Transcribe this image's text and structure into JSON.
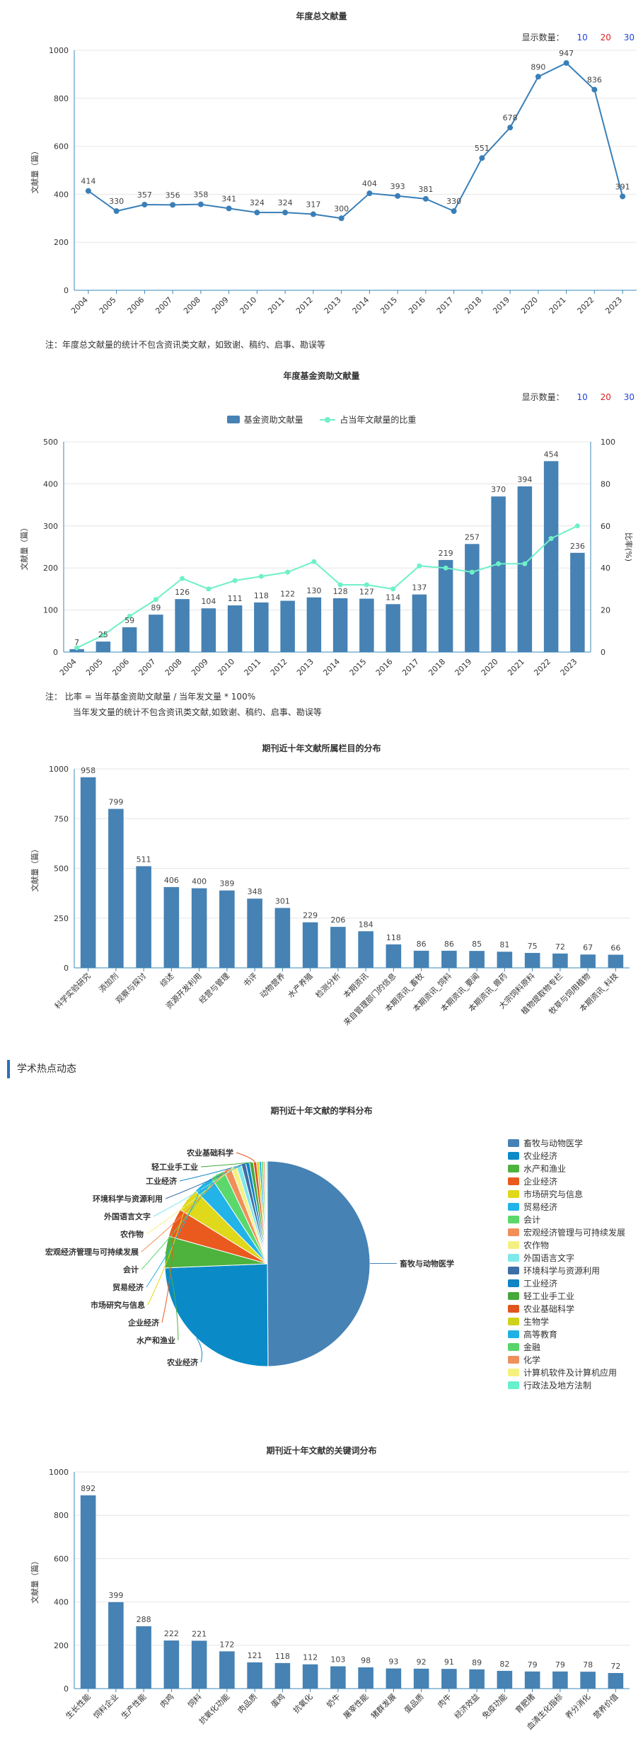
{
  "count_options": {
    "label": "显示数量：",
    "opt10": "10",
    "opt20": "20",
    "opt30": "30"
  },
  "section": {
    "title": "学术热点动态"
  },
  "notes": {
    "total_note": "注：年度总文献量的统计不包含资讯类文献，如致谢、稿约、启事、勘误等",
    "fund_note1": "注：  比率 = 当年基金资助文献量 / 当年发文量 * 100%",
    "fund_note2": "当年发文量的统计不包含资讯类文献,如致谢、稿约、启事、勘误等"
  },
  "chart_data": [
    {
      "id": "total",
      "type": "line",
      "title": "年度总文献量",
      "ylabel": "文献量（篇）",
      "ylim": [
        0,
        1000
      ],
      "yticks": [
        0,
        200,
        400,
        600,
        800,
        1000
      ],
      "categories": [
        "2004",
        "2005",
        "2006",
        "2007",
        "2008",
        "2009",
        "2010",
        "2011",
        "2012",
        "2013",
        "2014",
        "2015",
        "2016",
        "2017",
        "2018",
        "2019",
        "2020",
        "2021",
        "2022",
        "2023"
      ],
      "values": [
        414,
        330,
        357,
        356,
        358,
        341,
        324,
        324,
        317,
        300,
        404,
        393,
        381,
        330,
        551,
        678,
        890,
        947,
        836,
        391
      ],
      "color": "#3a7fb8"
    },
    {
      "id": "fund",
      "type": "bar+line",
      "title": "年度基金资助文献量",
      "ylabel": "文献量（篇）",
      "y2label": "比率(%)",
      "ylim": [
        0,
        500
      ],
      "yticks": [
        0,
        100,
        200,
        300,
        400,
        500
      ],
      "y2lim": [
        0,
        100
      ],
      "y2ticks": [
        0,
        20,
        40,
        60,
        80,
        100
      ],
      "categories": [
        "2004",
        "2005",
        "2006",
        "2007",
        "2008",
        "2009",
        "2010",
        "2011",
        "2012",
        "2013",
        "2014",
        "2015",
        "2016",
        "2017",
        "2018",
        "2019",
        "2020",
        "2021",
        "2022",
        "2023"
      ],
      "series": [
        {
          "name": "基金资助文献量",
          "values": [
            7,
            25,
            59,
            89,
            126,
            104,
            111,
            118,
            122,
            130,
            128,
            127,
            114,
            137,
            219,
            257,
            370,
            394,
            454,
            236
          ],
          "color": "#4682b4"
        },
        {
          "name": "占当年文献量的比重",
          "values": [
            2,
            8,
            17,
            25,
            35,
            30,
            34,
            36,
            38,
            43,
            32,
            32,
            30,
            41,
            40,
            38,
            42,
            42,
            54,
            60
          ],
          "color": "#6ff0c8"
        }
      ]
    },
    {
      "id": "column",
      "type": "bar",
      "title": "期刊近十年文献所属栏目的分布",
      "ylabel": "文献量（篇）",
      "ylim": [
        0,
        1000
      ],
      "yticks": [
        0,
        250,
        500,
        750,
        1000
      ],
      "categories": [
        "科学实验研究",
        "添加剂",
        "观察与探讨",
        "综述",
        "资源开发利用",
        "经营与管理",
        "书评",
        "动物营养",
        "水产养殖",
        "检测分析",
        "本期资讯",
        "来自管理部门的信息",
        "本期资讯_畜牧",
        "本期资讯_饲料",
        "本期资讯_要闻",
        "本期资讯_兽药",
        "大宗饲料原料",
        "植物提取物专栏",
        "牧草与饲用植物",
        "本期资讯_科技"
      ],
      "values": [
        958,
        799,
        511,
        406,
        400,
        389,
        348,
        301,
        229,
        206,
        184,
        118,
        86,
        86,
        85,
        81,
        75,
        72,
        67,
        66
      ],
      "color": "#4682b4"
    },
    {
      "id": "subject",
      "type": "pie",
      "title": "期刊近十年文献的学科分布",
      "labels": [
        "畜牧与动物医学",
        "农业经济",
        "水产和渔业",
        "企业经济",
        "市场研究与信息",
        "贸易经济",
        "会计",
        "宏观经济管理与可持续发展",
        "农作物",
        "外国语言文字",
        "环境科学与资源利用",
        "工业经济",
        "轻工业手工业",
        "农业基础科学",
        "生物学",
        "高等教育",
        "金融",
        "化学",
        "计算机软件及计算机应用",
        "行政法及地方法制"
      ],
      "values": [
        50.0,
        24.5,
        5.0,
        4.5,
        3.8,
        3.2,
        2.2,
        1.2,
        0.9,
        0.8,
        0.7,
        0.6,
        0.6,
        0.5,
        0.4,
        0.35,
        0.3,
        0.25,
        0.2,
        0.2
      ],
      "colors": [
        "#4682b4",
        "#0a8bc8",
        "#4db33d",
        "#ea5a1f",
        "#e0d81a",
        "#22b3e8",
        "#5ad86c",
        "#f08f5a",
        "#f4f184",
        "#7fe8ea",
        "#3e6ea6",
        "#1084c4",
        "#45a83a",
        "#e0551e",
        "#cfd21c",
        "#20b0e4",
        "#58d46a",
        "#ee905c",
        "#f6f17e",
        "#66f0cc"
      ],
      "callout_labels": [
        "农业基础科学",
        "轻工业手工业",
        "工业经济",
        "环境科学与资源利用",
        "外国语言文字",
        "农作物",
        "宏观经济管理与可持续发展",
        "会计",
        "贸易经济",
        "市场研究与信息",
        "企业经济",
        "水产和渔业",
        "农业经济",
        "畜牧与动物医学"
      ]
    },
    {
      "id": "keyword",
      "type": "bar",
      "title": "期刊近十年文献的关键词分布",
      "ylabel": "文献量（篇）",
      "ylim": [
        0,
        1000
      ],
      "yticks": [
        0,
        200,
        400,
        600,
        800,
        1000
      ],
      "categories": [
        "生长性能",
        "饲料企业",
        "生产性能",
        "肉鸡",
        "饲料",
        "抗氧化功能",
        "肉品质",
        "蛋鸡",
        "抗氧化",
        "奶牛",
        "屠宰性能",
        "猪群发展",
        "蛋品质",
        "肉牛",
        "经济效益",
        "免疫功能",
        "育肥猪",
        "血清生化指标",
        "养分消化",
        "营养价值"
      ],
      "values": [
        892,
        399,
        288,
        222,
        221,
        172,
        121,
        118,
        112,
        103,
        98,
        93,
        92,
        91,
        89,
        82,
        79,
        79,
        78,
        72
      ],
      "color": "#4682b4"
    }
  ]
}
